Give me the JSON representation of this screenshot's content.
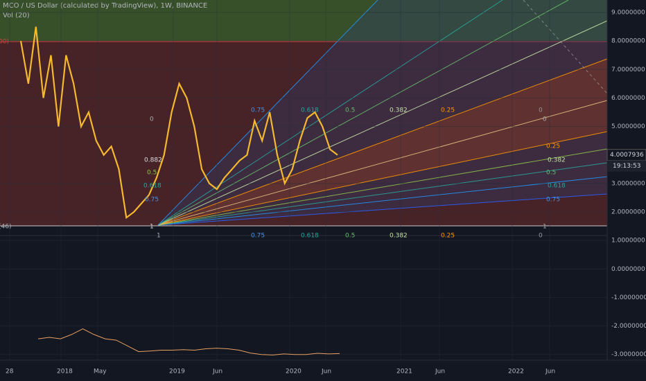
{
  "header": {
    "symbol": "MCO / US Dollar (calculated by TradingView), 1W, BINANCE",
    "indicator": "Vol (20)",
    "clipped_left_top": "00)",
    "clipped_left_bottom": "(46)"
  },
  "price_axis": {
    "ticks": [
      {
        "value": 9,
        "label": "9.0000000"
      },
      {
        "value": 8,
        "label": "8.0000000"
      },
      {
        "value": 7,
        "label": "7.0000000"
      },
      {
        "value": 6,
        "label": "6.0000000"
      },
      {
        "value": 5,
        "label": "5.0000000"
      },
      {
        "value": 3,
        "label": "3.0000000"
      },
      {
        "value": 2,
        "label": "2.0000000"
      },
      {
        "value": 1,
        "label": "1.0000000"
      },
      {
        "value": 0,
        "label": "0.0000000"
      },
      {
        "value": -1,
        "label": "-1.0000000"
      },
      {
        "value": -2,
        "label": "-2.0000000"
      },
      {
        "value": -3,
        "label": "-3.0000000"
      }
    ],
    "last_price": {
      "value": 4.0007936,
      "label": "4.0007936"
    },
    "countdown": "19:13:53"
  },
  "time_axis": {
    "labels": [
      "28",
      "2018",
      "May",
      "2019",
      "Jun",
      "2020",
      "Jun",
      "2021",
      "Jun",
      "2022",
      "Jun"
    ]
  },
  "price_series": {
    "values": [
      8,
      6.5,
      8.5,
      6,
      7.5,
      5,
      7.5,
      6.5,
      5,
      5.5,
      4.5,
      4,
      4.3,
      3.5,
      1.8,
      2,
      2.3,
      2.6,
      3.2,
      4,
      5.5,
      6.5,
      6,
      5,
      3.5,
      3,
      2.8,
      3.2,
      3.5,
      3.8,
      4,
      5.2,
      4.5,
      5.5,
      4,
      3,
      3.5,
      4.5,
      5.3,
      5.5,
      5,
      4.2,
      4
    ]
  },
  "volume_series": {
    "values": [
      -2.45,
      -2.4,
      -2.45,
      -2.3,
      -2.1,
      -2.3,
      -2.45,
      -2.5,
      -2.7,
      -2.9,
      -2.88,
      -2.85,
      -2.85,
      -2.83,
      -2.85,
      -2.8,
      -2.78,
      -2.8,
      -2.85,
      -2.95,
      -3,
      -3.02,
      -2.98,
      -3,
      -3,
      -2.96,
      -2.98,
      -2.97
    ]
  },
  "fib_labels": [
    "0.75",
    "0.618",
    "0.5",
    "0.382",
    "0.25",
    "0",
    "0",
    "0",
    "0.25",
    "0.382",
    "0.5",
    "0.618",
    "0.75",
    "0.882",
    "0.5",
    "0.618",
    "0.75",
    "1",
    "1",
    "0.75",
    "0.618",
    "0.5",
    "0.382",
    "0.25",
    "0",
    "1"
  ]
}
